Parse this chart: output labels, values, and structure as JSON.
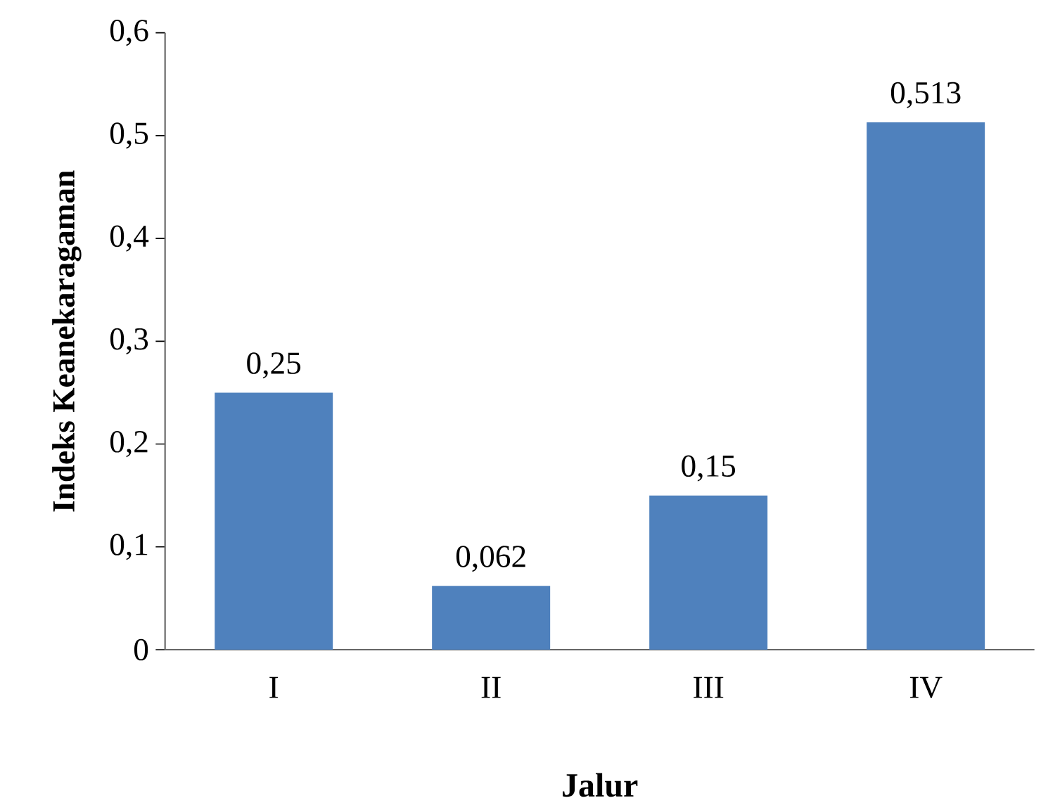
{
  "chart_data": {
    "type": "bar",
    "xlabel": "Jalur",
    "ylabel": "Indeks Keanekaragaman",
    "categories": [
      "I",
      "II",
      "III",
      "IV"
    ],
    "values": [
      0.25,
      0.062,
      0.15,
      0.513
    ],
    "value_labels": [
      "0,25",
      "0,062",
      "0,15",
      "0,513"
    ],
    "color": "#4f81bd",
    "ylim": [
      0,
      0.6
    ],
    "yticks": [
      0,
      {
        "value": 0.1,
        "label": "0,1"
      },
      {
        "value": 0.2,
        "label": "0,2"
      },
      {
        "value": 0.3,
        "label": "0,3"
      },
      {
        "value": 0.4,
        "label": "0,4"
      },
      {
        "value": 0.5,
        "label": "0,5"
      },
      {
        "value": 0.6,
        "label": "0,6"
      }
    ],
    "grid": false
  }
}
